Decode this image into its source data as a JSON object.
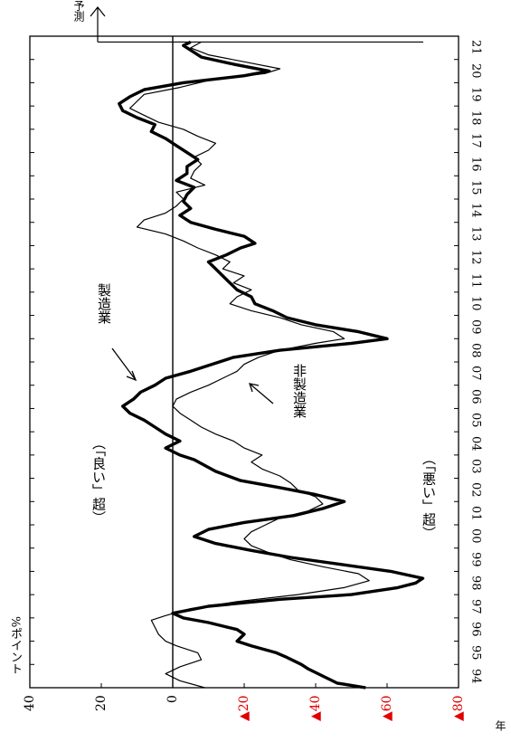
{
  "chart_data": {
    "type": "line",
    "orientation": "rotated-90-counterclockwise",
    "unit_label": "%ポイント",
    "x_unit_label": "年",
    "forecast_label": "予測",
    "zone_good_label": "（「良い」超）",
    "zone_bad_label": "（「悪い」超）",
    "y_ticks": [
      {
        "value": 40,
        "label": "40",
        "color": "#000000"
      },
      {
        "value": 20,
        "label": "20",
        "color": "#000000"
      },
      {
        "value": 0,
        "label": "0",
        "color": "#000000"
      },
      {
        "value": -20,
        "label": "▲20",
        "color": "#e00000"
      },
      {
        "value": -40,
        "label": "▲40",
        "color": "#e00000"
      },
      {
        "value": -60,
        "label": "▲60",
        "color": "#e00000"
      },
      {
        "value": -80,
        "label": "▲80",
        "color": "#e00000"
      }
    ],
    "ylim": [
      -80,
      40
    ],
    "xlim": [
      1994,
      2022
    ],
    "x_tick_labels": [
      "94",
      "95",
      "96",
      "97",
      "98",
      "99",
      "00",
      "01",
      "02",
      "03",
      "04",
      "05",
      "06",
      "07",
      "08",
      "09",
      "10",
      "11",
      "12",
      "13",
      "14",
      "15",
      "16",
      "17",
      "18",
      "19",
      "20",
      "21"
    ],
    "forecast_x": 2021.75,
    "series": [
      {
        "name": "製造業",
        "style": "thick",
        "values": [
          [
            1994.0,
            -54
          ],
          [
            1994.2,
            -46
          ],
          [
            1994.5,
            -42
          ],
          [
            1994.8,
            -38
          ],
          [
            1995.0,
            -36
          ],
          [
            1995.3,
            -32
          ],
          [
            1995.5,
            -29
          ],
          [
            1995.8,
            -22
          ],
          [
            1996.0,
            -18
          ],
          [
            1996.3,
            -20
          ],
          [
            1996.5,
            -18
          ],
          [
            1996.8,
            -10
          ],
          [
            1997.0,
            -3
          ],
          [
            1997.2,
            0
          ],
          [
            1997.5,
            -10
          ],
          [
            1997.8,
            -30
          ],
          [
            1998.0,
            -50
          ],
          [
            1998.3,
            -63
          ],
          [
            1998.5,
            -68
          ],
          [
            1998.7,
            -70
          ],
          [
            1999.0,
            -61
          ],
          [
            1999.3,
            -47
          ],
          [
            1999.6,
            -33
          ],
          [
            1999.9,
            -22
          ],
          [
            2000.2,
            -12
          ],
          [
            2000.5,
            -6
          ],
          [
            2000.8,
            -10
          ],
          [
            2001.1,
            -20
          ],
          [
            2001.4,
            -34
          ],
          [
            2001.7,
            -42
          ],
          [
            2002.0,
            -48
          ],
          [
            2002.3,
            -40
          ],
          [
            2002.6,
            -30
          ],
          [
            2002.9,
            -19
          ],
          [
            2003.3,
            -12
          ],
          [
            2003.8,
            -6
          ],
          [
            2004.0,
            -2
          ],
          [
            2004.3,
            2
          ],
          [
            2004.6,
            -2
          ],
          [
            2004.9,
            2
          ],
          [
            2005.2,
            5
          ],
          [
            2005.5,
            8
          ],
          [
            2005.8,
            12
          ],
          [
            2006.1,
            14
          ],
          [
            2006.4,
            11
          ],
          [
            2006.7,
            9
          ],
          [
            2007.0,
            5
          ],
          [
            2007.3,
            2
          ],
          [
            2007.6,
            -5
          ],
          [
            2007.9,
            -11
          ],
          [
            2008.2,
            -17
          ],
          [
            2008.5,
            -30
          ],
          [
            2008.8,
            -50
          ],
          [
            2009.0,
            -60
          ],
          [
            2009.3,
            -52
          ],
          [
            2009.6,
            -40
          ],
          [
            2009.9,
            -32
          ],
          [
            2010.2,
            -28
          ],
          [
            2010.5,
            -23
          ],
          [
            2010.8,
            -22
          ],
          [
            2011.1,
            -18
          ],
          [
            2011.4,
            -16
          ],
          [
            2011.7,
            -14
          ],
          [
            2012.0,
            -12
          ],
          [
            2012.3,
            -10
          ],
          [
            2012.6,
            -15
          ],
          [
            2012.9,
            -19
          ],
          [
            2013.1,
            -23
          ],
          [
            2013.4,
            -20
          ],
          [
            2013.7,
            -12
          ],
          [
            2014.0,
            -5
          ],
          [
            2014.3,
            -2
          ],
          [
            2014.6,
            -5
          ],
          [
            2014.9,
            -3
          ],
          [
            2015.2,
            -4
          ],
          [
            2015.5,
            -6
          ],
          [
            2015.8,
            -1
          ],
          [
            2016.1,
            -4
          ],
          [
            2016.4,
            -4
          ],
          [
            2016.7,
            -7
          ],
          [
            2017.0,
            -4
          ],
          [
            2017.3,
            -1
          ],
          [
            2017.6,
            2
          ],
          [
            2017.9,
            6
          ],
          [
            2018.2,
            5
          ],
          [
            2018.5,
            10
          ],
          [
            2018.8,
            14
          ],
          [
            2019.1,
            15
          ],
          [
            2019.4,
            12
          ],
          [
            2019.7,
            8
          ],
          [
            2020.0,
            -3
          ],
          [
            2020.3,
            -20
          ],
          [
            2020.5,
            -27
          ],
          [
            2020.8,
            -17
          ],
          [
            2021.1,
            -8
          ],
          [
            2021.4,
            -5
          ],
          [
            2021.6,
            -3
          ],
          [
            2021.75,
            -5
          ]
        ]
      },
      {
        "name": "非製造業",
        "style": "thin",
        "values": [
          [
            1994.0,
            -9
          ],
          [
            1994.3,
            -2
          ],
          [
            1994.6,
            2
          ],
          [
            1994.9,
            -2
          ],
          [
            1995.2,
            -8
          ],
          [
            1995.5,
            -7
          ],
          [
            1995.8,
            -1
          ],
          [
            1996.0,
            2
          ],
          [
            1996.3,
            4
          ],
          [
            1996.6,
            5
          ],
          [
            1996.9,
            6
          ],
          [
            1997.1,
            2
          ],
          [
            1997.4,
            -5
          ],
          [
            1997.7,
            -18
          ],
          [
            1998.0,
            -35
          ],
          [
            1998.3,
            -48
          ],
          [
            1998.6,
            -55
          ],
          [
            1998.9,
            -52
          ],
          [
            1999.2,
            -42
          ],
          [
            1999.5,
            -33
          ],
          [
            1999.8,
            -27
          ],
          [
            2000.1,
            -22
          ],
          [
            2000.4,
            -20
          ],
          [
            2000.7,
            -22
          ],
          [
            2001.0,
            -26
          ],
          [
            2001.3,
            -30
          ],
          [
            2001.6,
            -38
          ],
          [
            2001.9,
            -42
          ],
          [
            2002.2,
            -40
          ],
          [
            2002.5,
            -35
          ],
          [
            2002.8,
            -33
          ],
          [
            2003.1,
            -30
          ],
          [
            2003.4,
            -25
          ],
          [
            2003.7,
            -22
          ],
          [
            2004.0,
            -25
          ],
          [
            2004.3,
            -20
          ],
          [
            2004.6,
            -17
          ],
          [
            2004.9,
            -12
          ],
          [
            2005.2,
            -8
          ],
          [
            2005.5,
            -5
          ],
          [
            2005.8,
            -2
          ],
          [
            2006.1,
            0
          ],
          [
            2006.4,
            -1
          ],
          [
            2006.7,
            -5
          ],
          [
            2007.0,
            -10
          ],
          [
            2007.3,
            -14
          ],
          [
            2007.6,
            -18
          ],
          [
            2007.9,
            -20
          ],
          [
            2008.2,
            -24
          ],
          [
            2008.5,
            -30
          ],
          [
            2008.8,
            -40
          ],
          [
            2009.0,
            -48
          ],
          [
            2009.3,
            -45
          ],
          [
            2009.6,
            -36
          ],
          [
            2009.9,
            -30
          ],
          [
            2010.2,
            -22
          ],
          [
            2010.5,
            -16
          ],
          [
            2010.8,
            -18
          ],
          [
            2011.1,
            -22
          ],
          [
            2011.4,
            -17
          ],
          [
            2011.7,
            -20
          ],
          [
            2012.0,
            -14
          ],
          [
            2012.3,
            -16
          ],
          [
            2012.6,
            -12
          ],
          [
            2012.9,
            -7
          ],
          [
            2013.2,
            -3
          ],
          [
            2013.5,
            2
          ],
          [
            2013.8,
            10
          ],
          [
            2014.1,
            8
          ],
          [
            2014.4,
            2
          ],
          [
            2014.7,
            -1
          ],
          [
            2015.0,
            -3
          ],
          [
            2015.3,
            -1
          ],
          [
            2015.6,
            -9
          ],
          [
            2015.9,
            -5
          ],
          [
            2016.2,
            -6
          ],
          [
            2016.5,
            -8
          ],
          [
            2016.8,
            -6
          ],
          [
            2017.1,
            -10
          ],
          [
            2017.4,
            -12
          ],
          [
            2017.7,
            -7
          ],
          [
            2018.0,
            -3
          ],
          [
            2018.3,
            4
          ],
          [
            2018.6,
            8
          ],
          [
            2018.9,
            12
          ],
          [
            2019.2,
            10
          ],
          [
            2019.5,
            8
          ],
          [
            2019.8,
            -2
          ],
          [
            2020.1,
            -10
          ],
          [
            2020.4,
            -26
          ],
          [
            2020.6,
            -30
          ],
          [
            2020.9,
            -20
          ],
          [
            2021.2,
            -10
          ],
          [
            2021.5,
            -5
          ],
          [
            2021.75,
            -8
          ]
        ]
      }
    ],
    "grid": false,
    "legend": "inline-annotations"
  }
}
